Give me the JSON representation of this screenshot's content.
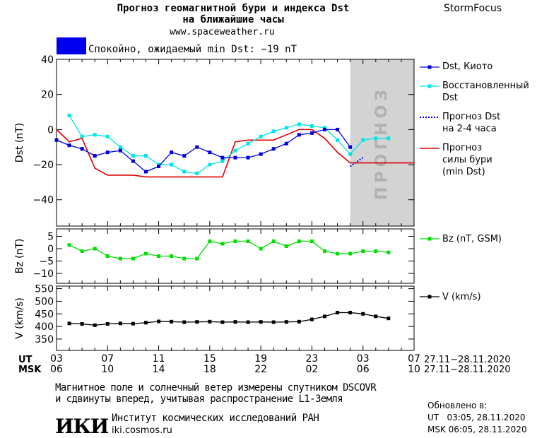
{
  "header": {
    "title_line1": "Прогноз геомагнитной бури и индекса Dst",
    "title_line2": "на ближайшие часы",
    "site": "www.spaceweather.ru",
    "brand": "StormFocus",
    "status_text": "Спокойно, ожидаемый min Dst: −19 nT",
    "status_color": "#0000ee"
  },
  "footer": {
    "note_line1": "Магнитное поле и солнечный ветер измерены спутником DSCOVR",
    "note_line2": "и сдвинуты вперед, учитывая распространение L1-Земля",
    "institute": "Институт космических исследований РАН",
    "institute_site": "iki.cosmos.ru",
    "logo_text": "ИКИ",
    "updated_label": "Обновлено в:",
    "updated_ut": "UT   03:05, 28.11.2020",
    "updated_msk": "MSK 06:05, 28.11.2020"
  },
  "time_axis": {
    "ut_label": "UT",
    "msk_label": "MSK",
    "ut_ticks": [
      "03",
      "07",
      "11",
      "15",
      "19",
      "23",
      "03",
      "07"
    ],
    "msk_ticks": [
      "06",
      "10",
      "14",
      "18",
      "22",
      "02",
      "06",
      "10"
    ],
    "date_range_ut": "27.11−28.11.2020",
    "date_range_msk": "27.11−28.11.2020"
  },
  "chart_data": [
    {
      "type": "line",
      "ylabel": "Dst (nT)",
      "ylim": [
        -55,
        40
      ],
      "yticks": [
        40,
        20,
        0,
        -20,
        -40
      ],
      "xlim": [
        3,
        31
      ],
      "forecast_band": {
        "x": [
          26,
          31
        ],
        "label": "ПРОГНОЗ",
        "color": "#d3d3d3"
      },
      "series": [
        {
          "name": "Dst, Киото",
          "color": "#0000dd",
          "x": [
            3,
            4,
            5,
            6,
            7,
            8,
            9,
            10,
            11,
            12,
            13,
            14,
            15,
            16,
            17,
            18,
            19,
            20,
            21,
            22,
            23,
            24,
            25,
            26
          ],
          "y": [
            -6,
            -9,
            -11,
            -15,
            -13,
            -12,
            -18,
            -24,
            -21,
            -13,
            -15,
            -10,
            -13,
            -16,
            -16,
            -16,
            -14,
            -11,
            -8,
            -3,
            -2,
            0,
            0,
            -10
          ]
        },
        {
          "name": "Восстановленный Dst",
          "color": "#00e5e5",
          "x": [
            4,
            5,
            6,
            7,
            8,
            9,
            10,
            11,
            12,
            13,
            14,
            15,
            16,
            17,
            18,
            19,
            20,
            21,
            22,
            23,
            24,
            25,
            26,
            27,
            28,
            29
          ],
          "y": [
            8,
            -4,
            -3,
            -4,
            -10,
            -15,
            -15,
            -20,
            -20,
            -24,
            -25,
            -20,
            -18,
            -12,
            -8,
            -4,
            -1,
            1,
            3,
            2,
            1,
            -6,
            -14,
            -6,
            -5,
            -5
          ]
        }
      ]
    },
    {
      "type": "line",
      "ylabel": "Bz (nT)",
      "ylim": [
        -14,
        8
      ],
      "yticks": [
        5,
        0,
        -5,
        -10
      ],
      "series": [
        {
          "name": "Bz (nT, GSM)",
          "color": "#00dd00",
          "x": [
            4,
            5,
            6,
            7,
            8,
            9,
            10,
            11,
            12,
            13,
            14,
            15,
            16,
            17,
            18,
            19,
            20,
            21,
            22,
            23,
            24,
            25,
            26,
            27,
            28,
            29
          ],
          "y": [
            1.5,
            -1,
            0,
            -3,
            -4,
            -4,
            -2,
            -3,
            -3,
            -4,
            -4,
            3,
            2,
            3,
            3,
            0,
            3,
            1,
            3,
            3,
            -1,
            -2,
            -2,
            -1,
            -1,
            -1.5
          ]
        }
      ]
    },
    {
      "type": "line",
      "ylabel": "V (km/s)",
      "ylim": [
        305,
        560
      ],
      "yticks": [
        550,
        500,
        450,
        400,
        350
      ],
      "series": [
        {
          "name": "V (km/s)",
          "color": "#000000",
          "x": [
            4,
            5,
            6,
            7,
            8,
            9,
            10,
            11,
            12,
            13,
            14,
            15,
            16,
            17,
            18,
            19,
            20,
            21,
            22,
            23,
            24,
            25,
            26,
            27,
            28,
            29
          ],
          "y": [
            412,
            410,
            405,
            410,
            412,
            411,
            415,
            420,
            419,
            417,
            418,
            419,
            417,
            418,
            417,
            418,
            417,
            418,
            419,
            428,
            440,
            455,
            455,
            450,
            440,
            432
          ]
        }
      ]
    },
    {
      "type": "line",
      "series": [
        {
          "name": "Прогноз Dst на 2-4 часа",
          "color": "#0000ee",
          "x": [
            26,
            27
          ],
          "y": [
            -21,
            -16
          ]
        },
        {
          "name": "Прогноз силы бури (min Dst)",
          "color": "#dd0000",
          "x": [
            3,
            4,
            5,
            6,
            7,
            8,
            9,
            10,
            11,
            12,
            13,
            14,
            15,
            16,
            17,
            18,
            19,
            20,
            21,
            22,
            23,
            24,
            25,
            26,
            27,
            28,
            29,
            30,
            31
          ],
          "y": [
            0,
            -7,
            -5,
            -22,
            -26,
            -26,
            -26,
            -27,
            -27,
            -27,
            -27,
            -27,
            -27,
            -27,
            -7,
            -6,
            -6,
            -6,
            -3,
            0,
            0,
            -5,
            -13,
            -19,
            -19,
            -19,
            -19,
            -19,
            -19
          ]
        }
      ]
    }
  ],
  "legend": {
    "dst_kyoto": "Dst, Киото",
    "restored_1": "Восстановленный",
    "restored_2": "Dst",
    "forecast_1": "Прогноз Dst",
    "forecast_2": "на 2-4 часа",
    "storm_1": "Прогноз",
    "storm_2": "силы бури",
    "storm_3": "(min Dst)",
    "bz": "Bz (nT, GSM)",
    "v": "V (km/s)"
  }
}
